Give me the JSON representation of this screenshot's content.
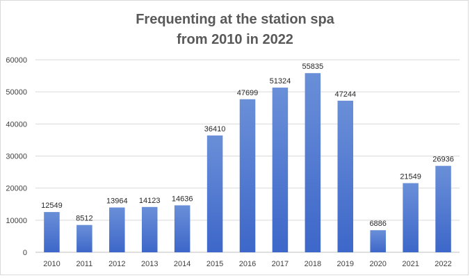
{
  "chart_data": {
    "type": "bar",
    "title": [
      "Frequenting at the station spa",
      "from 2010 in 2022"
    ],
    "xlabel": "",
    "ylabel": "",
    "categories": [
      "2010",
      "2011",
      "2012",
      "2013",
      "2014",
      "2015",
      "2016",
      "2017",
      "2018",
      "2019",
      "2020",
      "2021",
      "2022"
    ],
    "values": [
      12549,
      8512,
      13964,
      14123,
      14636,
      36410,
      47699,
      51324,
      55835,
      47244,
      6886,
      21549,
      26936
    ],
    "ylim": [
      0,
      60000
    ],
    "yticks": [
      0,
      10000,
      20000,
      30000,
      40000,
      50000,
      60000
    ],
    "grid": true,
    "legend": "none",
    "data_labels": true,
    "colors": {
      "bar_top": "#6a8fd8",
      "bar_bottom": "#3d67c9"
    }
  }
}
